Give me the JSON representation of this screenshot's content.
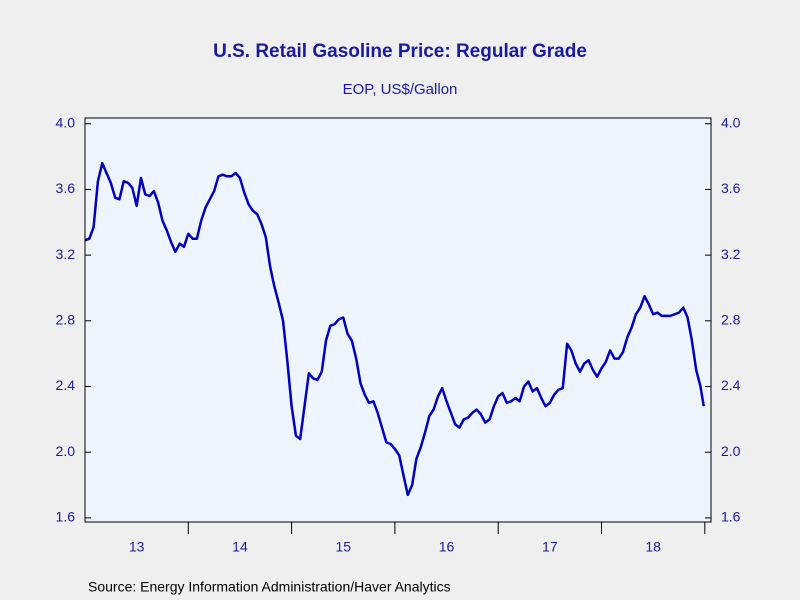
{
  "chart_data": {
    "type": "line",
    "title": "U.S. Retail Gasoline Price: Regular Grade",
    "subtitle": "EOP, US$/Gallon",
    "source": "Source:  Energy Information Administration/Haver Analytics",
    "x": [
      2013.0,
      2013.042,
      2013.083,
      2013.125,
      2013.167,
      2013.208,
      2013.25,
      2013.292,
      2013.333,
      2013.375,
      2013.417,
      2013.458,
      2013.5,
      2013.542,
      2013.583,
      2013.625,
      2013.667,
      2013.708,
      2013.75,
      2013.792,
      2013.833,
      2013.875,
      2013.917,
      2013.958,
      2014.0,
      2014.042,
      2014.083,
      2014.125,
      2014.167,
      2014.208,
      2014.25,
      2014.292,
      2014.333,
      2014.375,
      2014.417,
      2014.458,
      2014.5,
      2014.542,
      2014.583,
      2014.625,
      2014.667,
      2014.708,
      2014.75,
      2014.792,
      2014.833,
      2014.875,
      2014.917,
      2014.958,
      2015.0,
      2015.042,
      2015.083,
      2015.125,
      2015.167,
      2015.208,
      2015.25,
      2015.292,
      2015.333,
      2015.375,
      2015.417,
      2015.458,
      2015.5,
      2015.542,
      2015.583,
      2015.625,
      2015.667,
      2015.708,
      2015.75,
      2015.792,
      2015.833,
      2015.875,
      2015.917,
      2015.958,
      2016.0,
      2016.042,
      2016.083,
      2016.125,
      2016.167,
      2016.208,
      2016.25,
      2016.292,
      2016.333,
      2016.375,
      2016.417,
      2016.458,
      2016.5,
      2016.542,
      2016.583,
      2016.625,
      2016.667,
      2016.708,
      2016.75,
      2016.792,
      2016.833,
      2016.875,
      2016.917,
      2016.958,
      2017.0,
      2017.042,
      2017.083,
      2017.125,
      2017.167,
      2017.208,
      2017.25,
      2017.292,
      2017.333,
      2017.375,
      2017.417,
      2017.458,
      2017.5,
      2017.542,
      2017.583,
      2017.625,
      2017.667,
      2017.708,
      2017.75,
      2017.792,
      2017.833,
      2017.875,
      2017.917,
      2017.958,
      2018.0,
      2018.042,
      2018.083,
      2018.125,
      2018.167,
      2018.208,
      2018.25,
      2018.292,
      2018.333,
      2018.375,
      2018.417,
      2018.458,
      2018.5,
      2018.542,
      2018.583,
      2018.625,
      2018.667,
      2018.708,
      2018.75,
      2018.792,
      2018.833,
      2018.875,
      2018.917,
      2018.958,
      2018.99
    ],
    "series": [
      {
        "name": "Regular Grade",
        "color": "#0000c0",
        "values": [
          3.29,
          3.3,
          3.37,
          3.65,
          3.76,
          3.7,
          3.64,
          3.55,
          3.54,
          3.65,
          3.64,
          3.61,
          3.5,
          3.67,
          3.57,
          3.56,
          3.59,
          3.52,
          3.41,
          3.35,
          3.28,
          3.22,
          3.27,
          3.25,
          3.33,
          3.3,
          3.3,
          3.41,
          3.49,
          3.54,
          3.59,
          3.68,
          3.69,
          3.68,
          3.68,
          3.7,
          3.67,
          3.58,
          3.51,
          3.47,
          3.45,
          3.39,
          3.31,
          3.13,
          3.01,
          2.91,
          2.8,
          2.56,
          2.28,
          2.1,
          2.08,
          2.28,
          2.48,
          2.45,
          2.44,
          2.49,
          2.68,
          2.77,
          2.78,
          2.81,
          2.82,
          2.72,
          2.68,
          2.57,
          2.42,
          2.35,
          2.3,
          2.31,
          2.24,
          2.15,
          2.06,
          2.05,
          2.02,
          1.98,
          1.86,
          1.74,
          1.8,
          1.96,
          2.03,
          2.12,
          2.22,
          2.26,
          2.34,
          2.39,
          2.31,
          2.24,
          2.17,
          2.15,
          2.2,
          2.21,
          2.24,
          2.26,
          2.23,
          2.18,
          2.2,
          2.28,
          2.34,
          2.36,
          2.3,
          2.31,
          2.33,
          2.31,
          2.4,
          2.43,
          2.37,
          2.39,
          2.33,
          2.28,
          2.3,
          2.35,
          2.38,
          2.39,
          2.66,
          2.62,
          2.54,
          2.49,
          2.54,
          2.56,
          2.5,
          2.46,
          2.51,
          2.55,
          2.62,
          2.57,
          2.57,
          2.61,
          2.7,
          2.76,
          2.84,
          2.88,
          2.95,
          2.9,
          2.84,
          2.85,
          2.83,
          2.83,
          2.83,
          2.84,
          2.85,
          2.88,
          2.82,
          2.68,
          2.5,
          2.4,
          2.28
        ]
      }
    ],
    "xlim": [
      2013,
      2019.06
    ],
    "xticks": [
      {
        "value": 2013.5,
        "label": "13"
      },
      {
        "value": 2014.5,
        "label": "14"
      },
      {
        "value": 2015.5,
        "label": "15"
      },
      {
        "value": 2016.5,
        "label": "16"
      },
      {
        "value": 2017.5,
        "label": "17"
      },
      {
        "value": 2018.5,
        "label": "18"
      }
    ],
    "ylim": [
      1.575,
      4.035
    ],
    "yticks": [
      1.6,
      {
        "value": 2,
        "label": "2.0"
      },
      2.4,
      2.8,
      3.2,
      3.6,
      {
        "value": 4,
        "label": "4.0"
      }
    ],
    "y2lim": [
      1.575,
      4.035
    ],
    "y2ticks": [
      1.6,
      {
        "value": 2,
        "label": "2.0"
      },
      2.4,
      2.8,
      3.2,
      3.6,
      {
        "value": 4,
        "label": "4.0"
      }
    ],
    "grid": false
  }
}
